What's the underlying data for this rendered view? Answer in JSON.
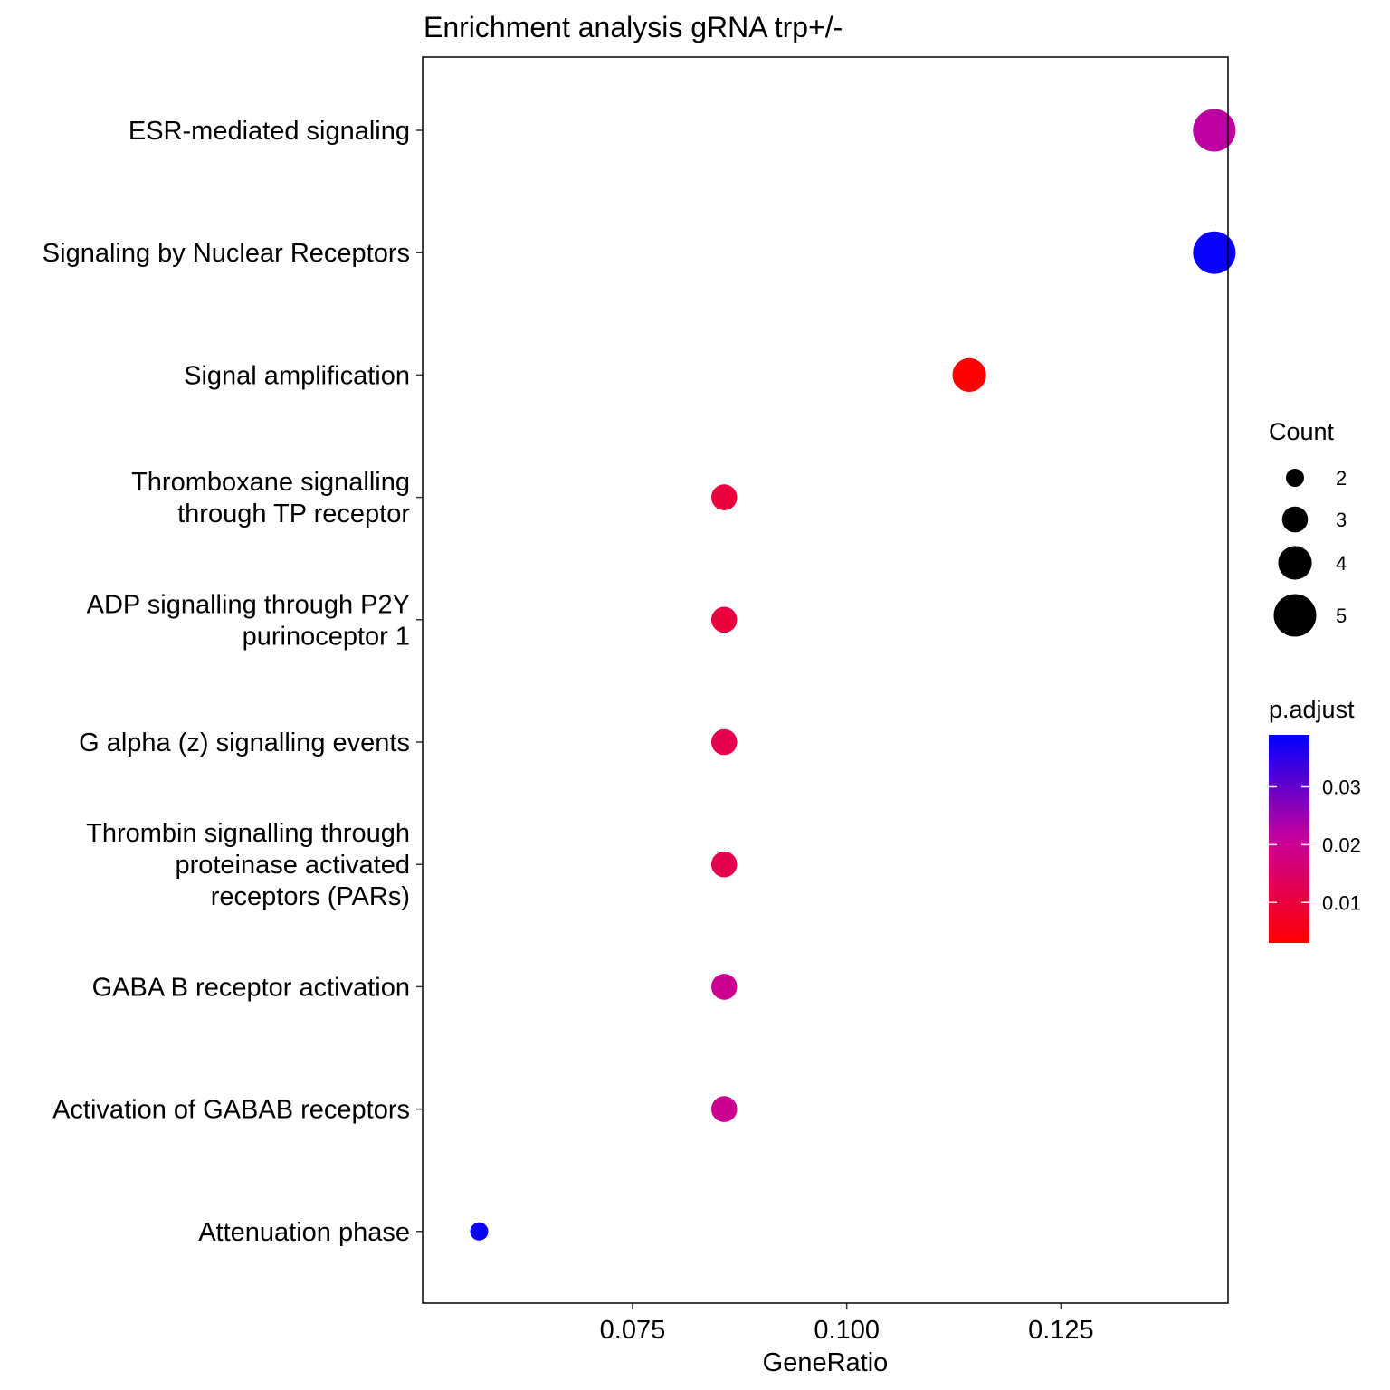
{
  "chart_data": {
    "type": "scatter",
    "title": "Enrichment analysis gRNA trp+/-",
    "xlabel": "GeneRatio",
    "ylabel": "",
    "xlim": [
      0.0505,
      0.1445
    ],
    "x_ticks": [
      0.075,
      0.1,
      0.125
    ],
    "x_tick_labels": [
      "0.075",
      "0.100",
      "0.125"
    ],
    "grid": false,
    "categories": [
      "ESR-mediated signaling",
      "Signaling by Nuclear Receptors",
      "Signal amplification",
      "Thromboxane signalling\nthrough TP receptor",
      "ADP signalling through P2Y\npurinoceptor 1",
      "G alpha (z) signalling events",
      "Thrombin signalling through\nproteinase activated\nreceptors (PARs)",
      "GABA B receptor activation",
      "Activation of GABAB receptors",
      "Attenuation phase"
    ],
    "points": [
      {
        "term": "ESR-mediated signaling",
        "gene_ratio": 0.1429,
        "count": 5,
        "p_adjust": 0.022
      },
      {
        "term": "Signaling by Nuclear Receptors",
        "gene_ratio": 0.1429,
        "count": 5,
        "p_adjust": 0.038
      },
      {
        "term": "Signal amplification",
        "gene_ratio": 0.1143,
        "count": 4,
        "p_adjust": 0.003
      },
      {
        "term": "Thromboxane signalling through TP receptor",
        "gene_ratio": 0.0857,
        "count": 3,
        "p_adjust": 0.01
      },
      {
        "term": "ADP signalling through P2Y purinoceptor 1",
        "gene_ratio": 0.0857,
        "count": 3,
        "p_adjust": 0.01
      },
      {
        "term": "G alpha (z) signalling events",
        "gene_ratio": 0.0857,
        "count": 3,
        "p_adjust": 0.012
      },
      {
        "term": "Thrombin signalling through proteinase activated receptors (PARs)",
        "gene_ratio": 0.0857,
        "count": 3,
        "p_adjust": 0.012
      },
      {
        "term": "GABA B receptor activation",
        "gene_ratio": 0.0857,
        "count": 3,
        "p_adjust": 0.02
      },
      {
        "term": "Activation of GABAB receptors",
        "gene_ratio": 0.0857,
        "count": 3,
        "p_adjust": 0.02
      },
      {
        "term": "Attenuation phase",
        "gene_ratio": 0.0571,
        "count": 2,
        "p_adjust": 0.038
      }
    ],
    "size_legend": {
      "title": "Count",
      "values": [
        2,
        3,
        4,
        5
      ],
      "labels": [
        "2",
        "3",
        "4",
        "5"
      ]
    },
    "color_legend": {
      "title": "p.adjust",
      "range": [
        0.003,
        0.039
      ],
      "ticks": [
        0.01,
        0.02,
        0.03
      ],
      "tick_labels": [
        "0.01",
        "0.02",
        "0.03"
      ],
      "low_color": "#ff0000",
      "high_color": "#0000ff"
    },
    "legend_position": "right"
  }
}
